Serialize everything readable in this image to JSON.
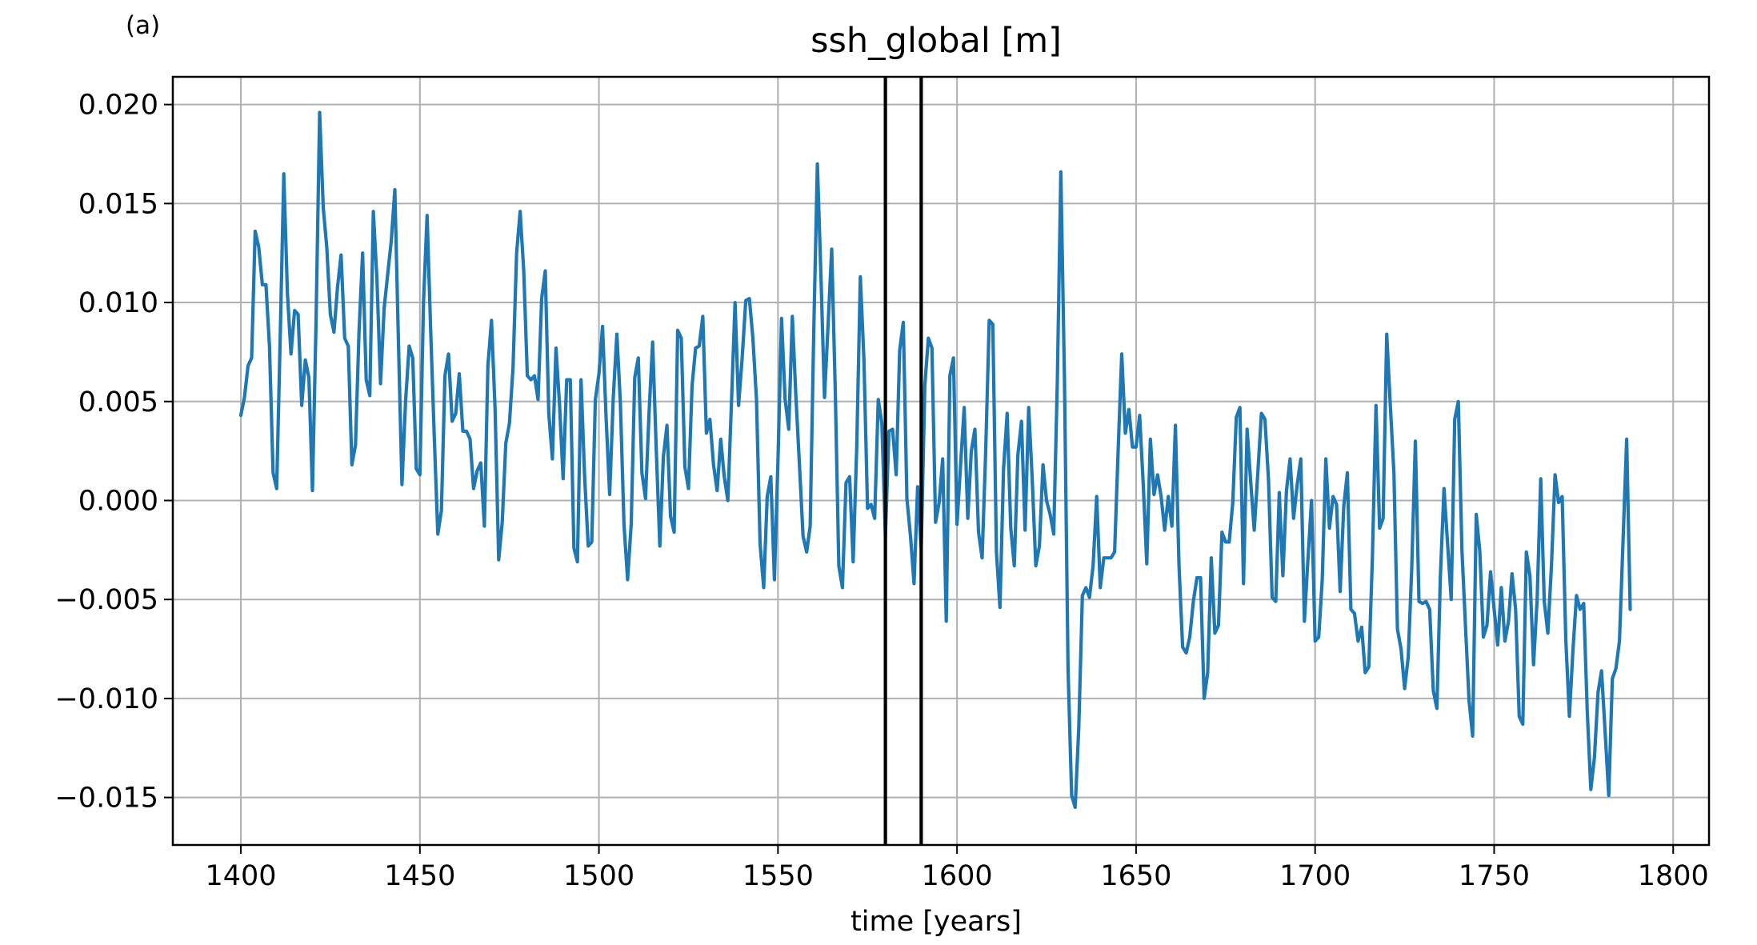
{
  "panel_label": "(a)",
  "chart_data": {
    "type": "line",
    "title": "ssh_global [m]",
    "xlabel": "time [years]",
    "ylabel": "",
    "xlim": [
      1381,
      1810
    ],
    "ylim": [
      -0.0174,
      0.0214
    ],
    "xticks": [
      1400,
      1450,
      1500,
      1550,
      1600,
      1650,
      1700,
      1750,
      1800
    ],
    "xtick_labels": [
      "1400",
      "1450",
      "1500",
      "1550",
      "1600",
      "1650",
      "1700",
      "1750",
      "1800"
    ],
    "yticks": [
      0.02,
      0.015,
      0.01,
      0.005,
      0.0,
      -0.005,
      -0.01,
      -0.015
    ],
    "ytick_labels": [
      "0.020",
      "0.015",
      "0.010",
      "0.005",
      "0.000",
      "−0.005",
      "−0.010",
      "−0.015"
    ],
    "grid": true,
    "line_color": "#1f77b4",
    "vertical_lines": [
      1580,
      1590
    ],
    "vertical_line_color": "#000000",
    "series": [
      {
        "x_start": 1400,
        "x_step": 1,
        "values": [
          0.0043,
          0.0052,
          0.0068,
          0.0072,
          0.0136,
          0.0128,
          0.0109,
          0.0109,
          0.0078,
          0.0014,
          0.0006,
          0.0084,
          0.0165,
          0.0105,
          0.0074,
          0.0096,
          0.0094,
          0.0048,
          0.0071,
          0.0062,
          0.0005,
          0.009,
          0.0196,
          0.0148,
          0.0128,
          0.0094,
          0.0085,
          0.0108,
          0.0124,
          0.0082,
          0.0078,
          0.0018,
          0.0028,
          0.0085,
          0.0125,
          0.0061,
          0.0053,
          0.0146,
          0.0112,
          0.0059,
          0.0097,
          0.0114,
          0.0131,
          0.0157,
          0.008,
          0.0008,
          0.005,
          0.0078,
          0.0072,
          0.0016,
          0.0013,
          0.01,
          0.0144,
          0.0087,
          0.0033,
          -0.0017,
          -0.0005,
          0.0063,
          0.0074,
          0.004,
          0.0044,
          0.0064,
          0.0035,
          0.0035,
          0.0031,
          0.0006,
          0.0015,
          0.0019,
          -0.0013,
          0.0068,
          0.0091,
          0.0046,
          -0.003,
          -0.0011,
          0.0029,
          0.0039,
          0.0067,
          0.0125,
          0.0146,
          0.0116,
          0.0063,
          0.0061,
          0.0063,
          0.0051,
          0.0102,
          0.0116,
          0.0044,
          0.0021,
          0.0077,
          0.0048,
          0.0011,
          0.0061,
          0.0061,
          -0.0024,
          -0.0031,
          0.0061,
          0.0012,
          -0.0023,
          -0.0021,
          0.0051,
          0.0064,
          0.0088,
          0.0042,
          0.0003,
          0.0052,
          0.0084,
          0.0049,
          -0.0012,
          -0.004,
          -0.0012,
          0.0062,
          0.0072,
          0.0014,
          0.0001,
          0.0044,
          0.008,
          0.0026,
          -0.0023,
          0.0022,
          0.0038,
          -0.0008,
          -0.0016,
          0.0086,
          0.0082,
          0.0017,
          0.0006,
          0.0058,
          0.0077,
          0.0078,
          0.0093,
          0.0034,
          0.0041,
          0.0018,
          0.0005,
          0.0031,
          0.0012,
          0.0,
          0.0049,
          0.01,
          0.0048,
          0.0072,
          0.0101,
          0.0102,
          0.0082,
          0.0051,
          -0.0022,
          -0.0044,
          0.0002,
          0.0012,
          -0.004,
          0.0021,
          0.0092,
          0.0051,
          0.0036,
          0.0093,
          0.0053,
          0.0018,
          -0.0018,
          -0.0026,
          -0.0013,
          0.0086,
          0.017,
          0.0113,
          0.0052,
          0.0089,
          0.0127,
          0.0055,
          -0.0033,
          -0.0044,
          0.0009,
          0.0012,
          -0.0031,
          0.0027,
          0.0113,
          0.0071,
          -0.0004,
          -0.0002,
          -0.0009,
          0.0051,
          0.0039,
          -0.0018,
          0.0035,
          0.0036,
          0.0013,
          0.0076,
          0.009,
          0.0001,
          -0.0018,
          -0.0042,
          0.0007,
          -0.0024,
          0.0058,
          0.0082,
          0.0077,
          -0.0011,
          -0.0001,
          0.0021,
          -0.0061,
          0.0063,
          0.0072,
          -0.0012,
          0.0018,
          0.0047,
          -0.0009,
          0.0025,
          0.0036,
          -0.0016,
          -0.0029,
          0.0024,
          0.0091,
          0.0089,
          -0.0026,
          -0.0054,
          0.0016,
          0.0044,
          -0.0014,
          -0.0033,
          0.0023,
          0.004,
          -0.0015,
          0.0047,
          0.0011,
          -0.0033,
          -0.0023,
          0.0018,
          0.0,
          -0.0007,
          -0.0017,
          0.006,
          0.0166,
          0.0062,
          -0.0085,
          -0.0149,
          -0.0155,
          -0.0115,
          -0.0048,
          -0.0044,
          -0.0049,
          -0.0033,
          0.0002,
          -0.0044,
          -0.0029,
          -0.0029,
          -0.0029,
          -0.0026,
          0.0025,
          0.0074,
          0.0034,
          0.0046,
          0.0027,
          0.0027,
          0.0043,
          0.0008,
          -0.0032,
          0.0031,
          0.0003,
          0.0013,
          0.0002,
          -0.0015,
          0.0002,
          -0.0013,
          0.0038,
          -0.0033,
          -0.0074,
          -0.0077,
          -0.0069,
          -0.0051,
          -0.0039,
          -0.0039,
          -0.01,
          -0.0087,
          -0.0029,
          -0.0067,
          -0.0063,
          -0.0016,
          -0.0021,
          -0.0021,
          -0.0001,
          0.0042,
          0.0047,
          -0.0042,
          0.0036,
          0.001,
          -0.0015,
          0.0014,
          0.0044,
          0.0041,
          0.001,
          -0.0049,
          -0.0051,
          0.0004,
          -0.0038,
          0.0005,
          0.0021,
          -0.0009,
          0.0008,
          0.0021,
          -0.0061,
          -0.003,
          0.0,
          -0.0071,
          -0.0069,
          -0.004,
          0.0021,
          -0.0014,
          0.0002,
          -0.0002,
          -0.0046,
          -0.0003,
          0.0014,
          -0.0055,
          -0.0057,
          -0.0071,
          -0.0064,
          -0.0087,
          -0.0084,
          -0.0029,
          0.0048,
          -0.0014,
          -0.0009,
          0.0084,
          0.0048,
          0.0014,
          -0.0065,
          -0.0075,
          -0.0095,
          -0.0079,
          -0.0034,
          0.003,
          -0.0051,
          -0.0052,
          -0.0051,
          -0.0055,
          -0.0096,
          -0.0105,
          -0.0038,
          0.0006,
          -0.0022,
          -0.005,
          0.0041,
          0.005,
          -0.0025,
          -0.0064,
          -0.0101,
          -0.0119,
          -0.0007,
          -0.0026,
          -0.0069,
          -0.0063,
          -0.0036,
          -0.0055,
          -0.0073,
          -0.0044,
          -0.0071,
          -0.0061,
          -0.0037,
          -0.0055,
          -0.0109,
          -0.0113,
          -0.0026,
          -0.0038,
          -0.0083,
          -0.005,
          0.0011,
          -0.0051,
          -0.0067,
          -0.0033,
          0.0013,
          -0.0001,
          0.0002,
          -0.007,
          -0.0109,
          -0.0076,
          -0.0048,
          -0.0055,
          -0.0052,
          -0.0106,
          -0.0146,
          -0.013,
          -0.0097,
          -0.0086,
          -0.0117,
          -0.0149,
          -0.009,
          -0.0085,
          -0.0071,
          -0.002,
          0.0031,
          -0.0055
        ]
      }
    ]
  }
}
